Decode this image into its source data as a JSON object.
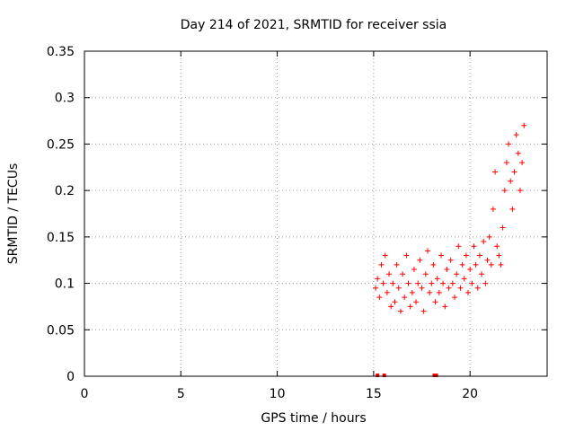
{
  "chart_data": {
    "type": "scatter",
    "title": "Day 214 of 2021, SRMTID for receiver ssia",
    "xlabel": "GPS time / hours",
    "ylabel": "SRMTID / TECUs",
    "xlim": [
      0,
      24
    ],
    "ylim": [
      0,
      0.35
    ],
    "x_ticks": [
      0,
      5,
      10,
      15,
      20
    ],
    "x_tick_labels": [
      "0",
      "5",
      "10",
      "15",
      "20"
    ],
    "y_ticks": [
      0,
      0.05,
      0.1,
      0.15,
      0.2,
      0.25,
      0.3,
      0.35
    ],
    "y_tick_labels": [
      "0",
      "0.05",
      "0.1",
      "0.15",
      "0.2",
      "0.25",
      "0.3",
      "0.35"
    ],
    "grid": true,
    "marker": "plus",
    "color": "#ff0000",
    "zero_values_x": [
      15.2,
      15.55,
      18.15,
      18.25
    ],
    "series": [
      {
        "name": "SRMTID",
        "x": [
          15.1,
          15.2,
          15.3,
          15.4,
          15.5,
          15.6,
          15.7,
          15.8,
          15.9,
          16.0,
          16.1,
          16.2,
          16.3,
          16.4,
          16.5,
          16.6,
          16.7,
          16.8,
          16.9,
          17.0,
          17.1,
          17.2,
          17.3,
          17.4,
          17.5,
          17.6,
          17.7,
          17.8,
          17.9,
          18.0,
          18.1,
          18.2,
          18.3,
          18.4,
          18.5,
          18.6,
          18.7,
          18.8,
          18.9,
          19.0,
          19.1,
          19.2,
          19.3,
          19.4,
          19.5,
          19.6,
          19.7,
          19.8,
          19.9,
          20.0,
          20.1,
          20.2,
          20.3,
          20.4,
          20.5,
          20.6,
          20.7,
          20.8,
          20.9,
          21.0,
          21.1,
          21.2,
          21.3,
          21.4,
          21.5,
          21.6,
          21.7,
          21.8,
          21.9,
          22.0,
          22.1,
          22.2,
          22.3,
          22.4,
          22.5,
          22.6,
          22.7,
          22.8
        ],
        "y": [
          0.095,
          0.105,
          0.085,
          0.12,
          0.1,
          0.13,
          0.09,
          0.11,
          0.075,
          0.1,
          0.08,
          0.12,
          0.095,
          0.07,
          0.11,
          0.085,
          0.13,
          0.1,
          0.075,
          0.09,
          0.115,
          0.08,
          0.1,
          0.125,
          0.095,
          0.07,
          0.11,
          0.135,
          0.09,
          0.1,
          0.12,
          0.08,
          0.105,
          0.09,
          0.13,
          0.1,
          0.075,
          0.115,
          0.095,
          0.125,
          0.1,
          0.085,
          0.11,
          0.14,
          0.095,
          0.12,
          0.105,
          0.13,
          0.09,
          0.115,
          0.1,
          0.14,
          0.12,
          0.095,
          0.13,
          0.11,
          0.145,
          0.1,
          0.125,
          0.15,
          0.12,
          0.18,
          0.22,
          0.14,
          0.13,
          0.12,
          0.16,
          0.2,
          0.23,
          0.25,
          0.21,
          0.18,
          0.22,
          0.26,
          0.24,
          0.2,
          0.23,
          0.27
        ]
      }
    ]
  }
}
